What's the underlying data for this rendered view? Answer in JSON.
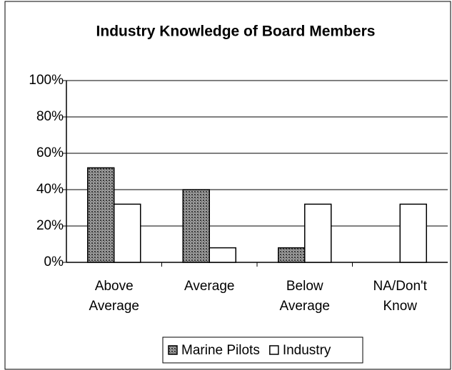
{
  "chart_data": {
    "type": "bar",
    "title": "Industry Knowledge of Board Members",
    "categories": [
      "Above Average",
      "Average",
      "Below Average",
      "NA/Don't Know"
    ],
    "series": [
      {
        "name": "Marine Pilots",
        "color": "#7a7a7a",
        "values": [
          52,
          40,
          8,
          0
        ]
      },
      {
        "name": "Industry",
        "color": "#ffffff",
        "values": [
          32,
          8,
          32,
          32
        ]
      }
    ],
    "ylim": [
      0,
      100
    ],
    "yticks": [
      {
        "value": 0,
        "label": "0%"
      },
      {
        "value": 20,
        "label": "20%"
      },
      {
        "value": 40,
        "label": "40%"
      },
      {
        "value": 60,
        "label": "60%"
      },
      {
        "value": 80,
        "label": "80%"
      },
      {
        "value": 100,
        "label": "100%"
      }
    ],
    "grid": true,
    "legend": "bottom"
  }
}
